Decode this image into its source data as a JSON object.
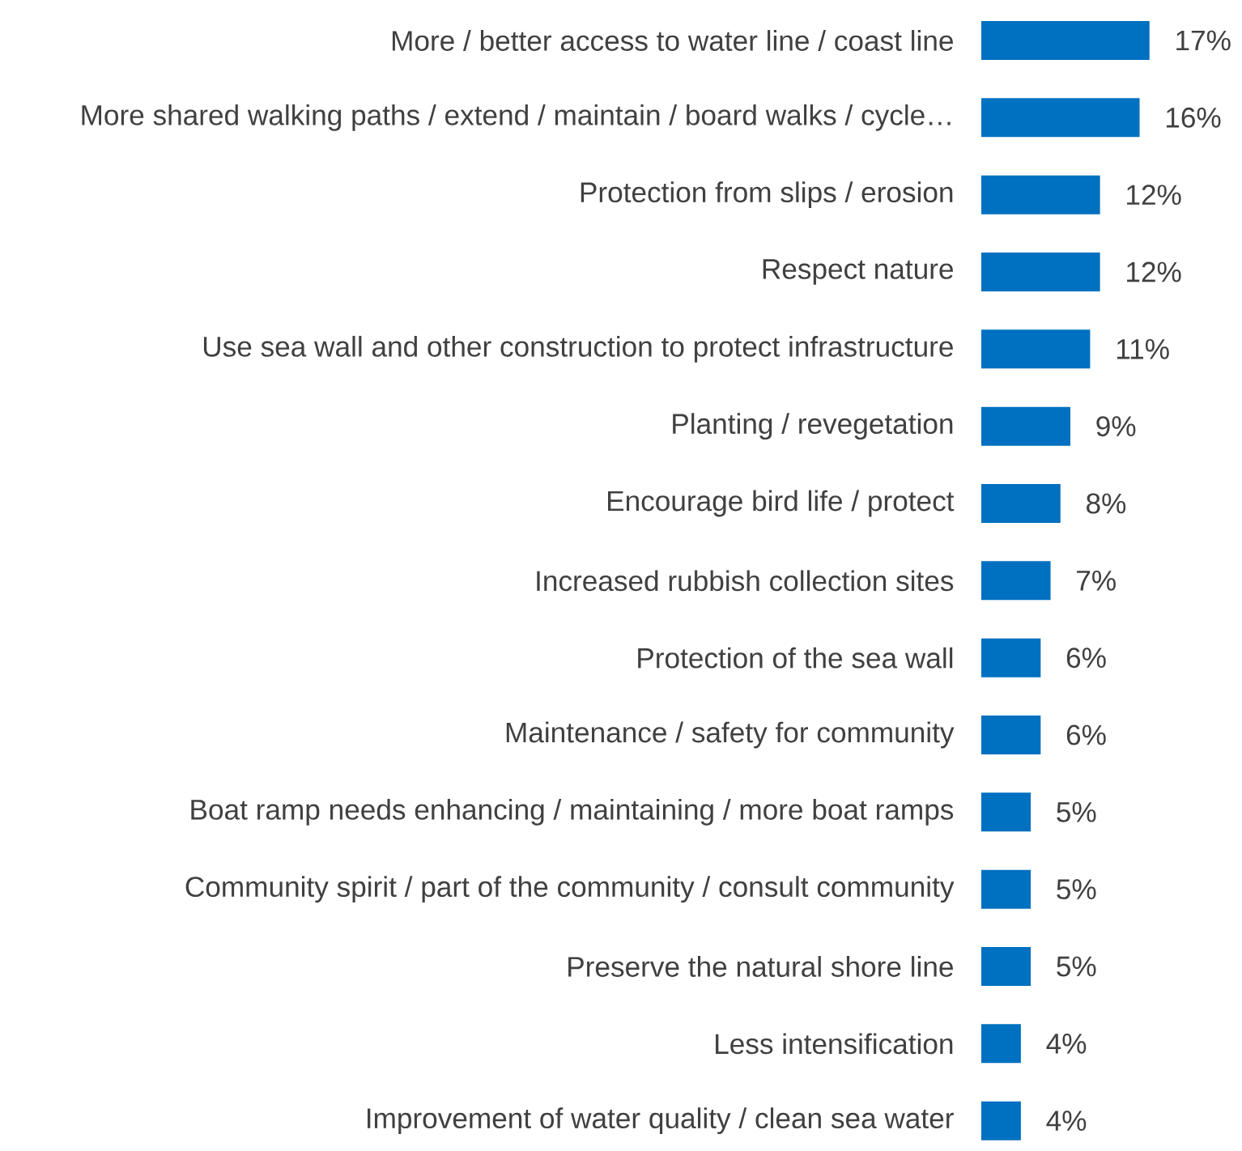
{
  "chart_data": {
    "type": "bar",
    "orientation": "horizontal",
    "color": "#0070c0",
    "categories": [
      "More / better access to water line / coast line",
      "More shared walking paths / extend / maintain / board walks / cycle…",
      "Protection from slips / erosion",
      "Respect nature",
      "Use sea wall and other construction to protect infrastructure",
      "Planting / revegetation",
      "Encourage bird life / protect",
      "Increased rubbish collection sites",
      "Protection of the sea wall",
      "Maintenance / safety for community",
      "Boat ramp needs enhancing / maintaining / more boat ramps",
      "Community spirit / part of the community / consult community",
      "Preserve the natural shore line",
      "Less intensification",
      "Improvement of water quality / clean sea water"
    ],
    "values": [
      17,
      16,
      12,
      12,
      11,
      9,
      8,
      7,
      6,
      6,
      5,
      5,
      5,
      4,
      4
    ],
    "value_labels": [
      "17%",
      "16%",
      "12%",
      "12%",
      "11%",
      "9%",
      "8%",
      "7%",
      "6%",
      "6%",
      "5%",
      "5%",
      "5%",
      "4%",
      "4%"
    ]
  }
}
